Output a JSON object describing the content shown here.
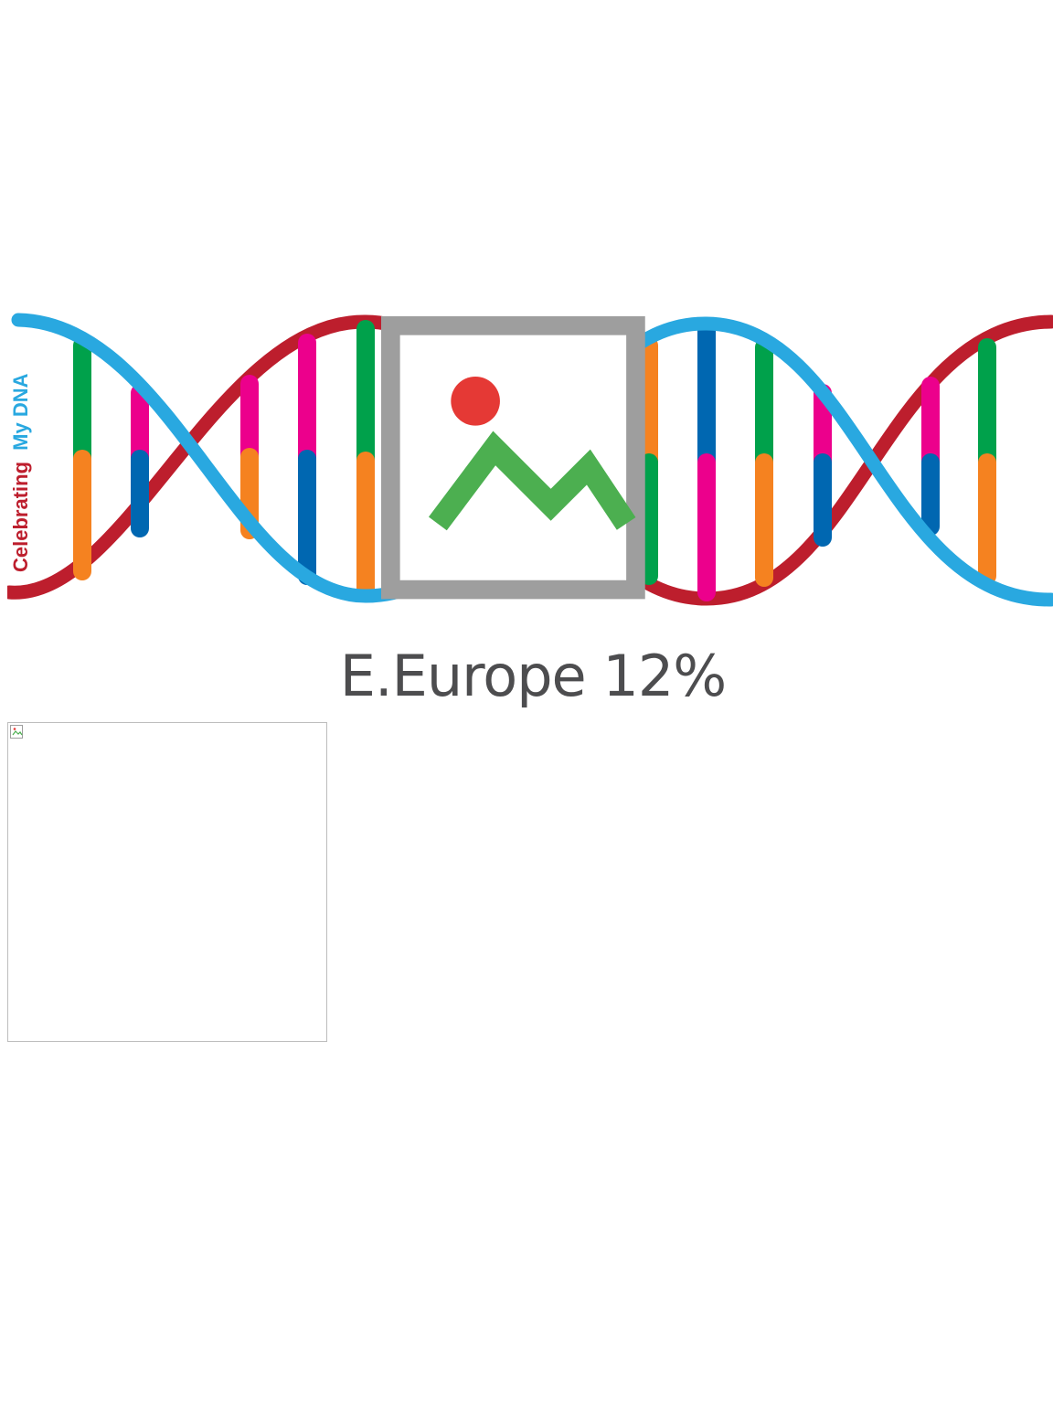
{
  "banner": {
    "title_part1": "Celebrating",
    "title_part2": "My DNA",
    "icon": "broken-image-icon",
    "colors": {
      "title_part1": "#bd1e2d",
      "title_part2": "#29a8e0",
      "strand_red": "#bd1e2d",
      "strand_blue": "#29a8e0",
      "green": "#00a14b",
      "orange": "#f58220",
      "pink": "#ec008c",
      "blue": "#0067b1"
    }
  },
  "caption": {
    "text": "E.Europe 12%",
    "color": "#4d4d4f"
  },
  "photo": {
    "icon": "broken-image-icon"
  }
}
